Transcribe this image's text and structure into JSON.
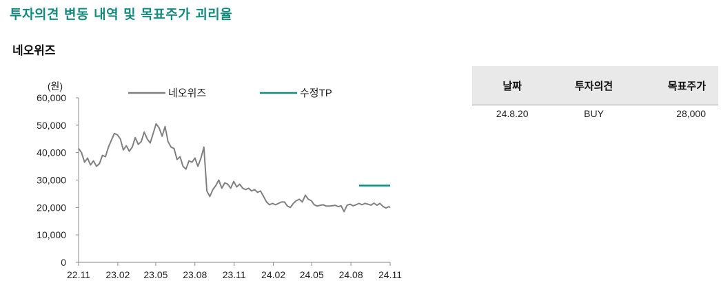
{
  "page_title": "투자의견 변동 내역 및 목표주가 괴리율",
  "stock_name": "네오위즈",
  "opinion_table": {
    "headers": [
      "날짜",
      "투자의견",
      "목표주가"
    ],
    "rows": [
      [
        "24.8.20",
        "BUY",
        "28,000"
      ]
    ]
  },
  "chart_data": {
    "type": "line",
    "unit_label": "(원)",
    "ylim": [
      0,
      60000
    ],
    "y_ticks": [
      0,
      10000,
      20000,
      30000,
      40000,
      50000,
      60000
    ],
    "y_tick_labels": [
      "0",
      "10,000",
      "20,000",
      "30,000",
      "40,000",
      "50,000",
      "60,000"
    ],
    "x_ticks": [
      "2022-11-01",
      "2023-02-01",
      "2023-05-01",
      "2023-08-01",
      "2023-11-01",
      "2024-02-01",
      "2024-05-01",
      "2024-08-01",
      "2024-11-01"
    ],
    "x_tick_labels": [
      "22.11",
      "23.02",
      "23.05",
      "23.08",
      "23.11",
      "24.02",
      "24.05",
      "24.08",
      "24.11"
    ],
    "series": [
      {
        "name": "네오위즈",
        "color": "#808080",
        "x": [
          "2022-11-01",
          "2022-11-08",
          "2022-11-15",
          "2022-11-22",
          "2022-11-29",
          "2022-12-06",
          "2022-12-13",
          "2022-12-20",
          "2022-12-27",
          "2023-01-03",
          "2023-01-10",
          "2023-01-17",
          "2023-01-24",
          "2023-01-31",
          "2023-02-07",
          "2023-02-14",
          "2023-02-21",
          "2023-02-28",
          "2023-03-07",
          "2023-03-14",
          "2023-03-21",
          "2023-03-28",
          "2023-04-04",
          "2023-04-11",
          "2023-04-18",
          "2023-04-25",
          "2023-05-02",
          "2023-05-09",
          "2023-05-16",
          "2023-05-23",
          "2023-05-30",
          "2023-06-06",
          "2023-06-13",
          "2023-06-20",
          "2023-06-27",
          "2023-07-04",
          "2023-07-11",
          "2023-07-18",
          "2023-07-25",
          "2023-08-01",
          "2023-08-08",
          "2023-08-15",
          "2023-08-22",
          "2023-08-29",
          "2023-09-05",
          "2023-09-12",
          "2023-09-19",
          "2023-09-26",
          "2023-10-03",
          "2023-10-10",
          "2023-10-17",
          "2023-10-24",
          "2023-10-31",
          "2023-11-07",
          "2023-11-14",
          "2023-11-21",
          "2023-11-28",
          "2023-12-05",
          "2023-12-12",
          "2023-12-19",
          "2023-12-26",
          "2024-01-02",
          "2024-01-09",
          "2024-01-16",
          "2024-01-23",
          "2024-01-30",
          "2024-02-06",
          "2024-02-13",
          "2024-02-20",
          "2024-02-27",
          "2024-03-05",
          "2024-03-12",
          "2024-03-19",
          "2024-03-26",
          "2024-04-02",
          "2024-04-09",
          "2024-04-16",
          "2024-04-23",
          "2024-04-30",
          "2024-05-07",
          "2024-05-14",
          "2024-05-21",
          "2024-05-28",
          "2024-06-04",
          "2024-06-11",
          "2024-06-18",
          "2024-06-25",
          "2024-07-02",
          "2024-07-09",
          "2024-07-16",
          "2024-07-23",
          "2024-07-30",
          "2024-08-06",
          "2024-08-13",
          "2024-08-20",
          "2024-08-27",
          "2024-09-03",
          "2024-09-10",
          "2024-09-17",
          "2024-09-24",
          "2024-10-01",
          "2024-10-08",
          "2024-10-15",
          "2024-10-22",
          "2024-10-29",
          "2024-11-01"
        ],
        "values": [
          41500,
          40000,
          36500,
          38000,
          35500,
          37000,
          35000,
          36000,
          39000,
          38500,
          42000,
          44500,
          47000,
          46500,
          45000,
          41000,
          42500,
          40500,
          42000,
          45500,
          43000,
          44000,
          47500,
          45000,
          43500,
          47000,
          50500,
          49000,
          46000,
          49500,
          44000,
          42000,
          41500,
          37500,
          38500,
          35000,
          34000,
          37000,
          36500,
          38000,
          35000,
          38000,
          42000,
          26000,
          24000,
          26500,
          28000,
          30000,
          27000,
          29000,
          28500,
          27000,
          29500,
          27500,
          28500,
          27000,
          26500,
          27000,
          26000,
          26500,
          25500,
          26000,
          24000,
          22000,
          21000,
          21500,
          21000,
          21500,
          22000,
          22000,
          20500,
          20000,
          21500,
          22500,
          23000,
          22000,
          24500,
          23000,
          22500,
          21000,
          20500,
          20800,
          21000,
          20500,
          20500,
          20600,
          20800,
          20300,
          20600,
          18500,
          20800,
          21200,
          20600,
          21000,
          21500,
          21000,
          21500,
          21200,
          20800,
          21600,
          20800,
          21500,
          20400,
          19800,
          20300,
          20000
        ]
      },
      {
        "name": "수정TP",
        "color": "#138a7e",
        "x": [
          "2024-08-20",
          "2024-11-01"
        ],
        "values": [
          28000,
          28000
        ]
      }
    ],
    "legend_position": "top",
    "grid": false
  }
}
